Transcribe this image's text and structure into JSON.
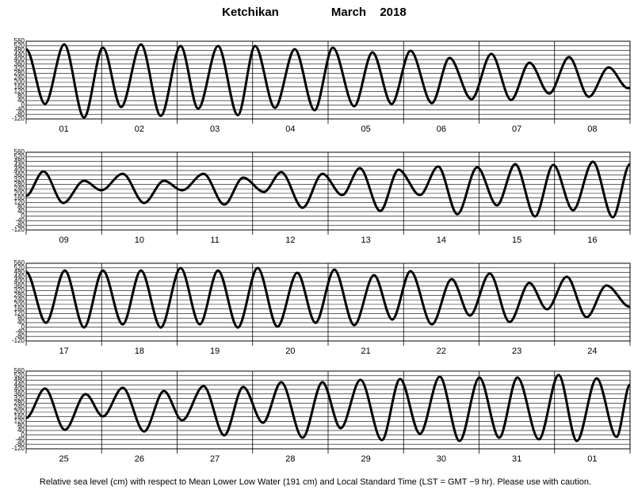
{
  "header": {
    "station": "Ketchikan",
    "month": "March",
    "year": "2018"
  },
  "caption": "Relative sea level (cm) with respect to Mean Lower Low Water (191 cm) and Local Standard Time (LST = GMT −9 hr). Please use with caution.",
  "chart_data": [
    {
      "type": "line",
      "categories": [
        "01",
        "02",
        "03",
        "04",
        "05",
        "06",
        "07",
        "08"
      ],
      "x": [
        0,
        6.0,
        12.1,
        18.4,
        24.4,
        30.2,
        36.5,
        42.8,
        49.1,
        54.7,
        61.0,
        67.3,
        72.8,
        79.1,
        85.4,
        91.7,
        97.5,
        104.3,
        110.1,
        116.2,
        122.2,
        129.0,
        134.6,
        141.6,
        147.9,
        154.2,
        160.0,
        166.3,
        172.6,
        178.9,
        185.2,
        191.3,
        192
      ],
      "series": [
        {
          "color": "#000000",
          "values": [
            490,
            11,
            532,
            -107,
            504,
            -16,
            532,
            -93,
            518,
            -30,
            518,
            -86,
            518,
            -23,
            491,
            -44,
            504,
            -9,
            463,
            11,
            477,
            18,
            414,
            53,
            449,
            46,
            373,
            102,
            421,
            74,
            331,
            150,
            150
          ]
        }
      ],
      "xlim": [
        0,
        192
      ],
      "xticks": [
        0,
        24,
        48,
        72,
        96,
        120,
        144,
        168,
        192
      ],
      "ylim": [
        -120,
        560
      ],
      "yticks": [
        -120,
        -80,
        -40,
        0,
        40,
        80,
        120,
        160,
        200,
        240,
        280,
        320,
        360,
        400,
        440,
        480,
        520,
        560
      ]
    },
    {
      "type": "line",
      "categories": [
        "09",
        "10",
        "11",
        "12",
        "13",
        "14",
        "15",
        "16"
      ],
      "x": [
        0,
        5.5,
        11.8,
        18.4,
        23.9,
        30.7,
        37.5,
        43.8,
        49.6,
        56.4,
        63.0,
        69.0,
        75.6,
        81.1,
        87.9,
        94.2,
        100.5,
        106.1,
        112.6,
        118.4,
        125.2,
        131.0,
        137.1,
        143.4,
        149.7,
        155.5,
        161.8,
        167.6,
        173.9,
        180.2,
        186.5,
        192
      ],
      "series": [
        {
          "color": "#000000",
          "values": [
            178,
            393,
            116,
            310,
            227,
            372,
            116,
            310,
            227,
            372,
            102,
            338,
            213,
            386,
            74,
            372,
            185,
            421,
            46,
            407,
            185,
            435,
            18,
            428,
            95,
            456,
            -2,
            449,
            53,
            477,
            -9,
            456
          ]
        }
      ],
      "xlim": [
        0,
        192
      ],
      "xticks": [
        0,
        24,
        48,
        72,
        96,
        120,
        144,
        168,
        192
      ],
      "ylim": [
        -120,
        560
      ],
      "yticks": [
        -120,
        -80,
        -40,
        0,
        40,
        80,
        120,
        160,
        200,
        240,
        280,
        320,
        360,
        400,
        440,
        480,
        520,
        560
      ]
    },
    {
      "type": "line",
      "categories": [
        "17",
        "18",
        "19",
        "20",
        "21",
        "22",
        "23",
        "24"
      ],
      "x": [
        0,
        6.3,
        12.3,
        18.4,
        24.4,
        30.7,
        36.5,
        42.8,
        49.1,
        55.2,
        61.0,
        67.3,
        73.6,
        79.9,
        86.2,
        92.0,
        98.0,
        104.3,
        110.6,
        116.4,
        122.2,
        129.0,
        135.3,
        141.1,
        147.4,
        153.7,
        160.0,
        165.6,
        171.9,
        178.2,
        184.5,
        192
      ],
      "series": [
        {
          "color": "#000000",
          "values": [
            484,
            39,
            497,
            -2,
            497,
            25,
            497,
            -2,
            518,
            25,
            497,
            -2,
            518,
            5,
            477,
            39,
            504,
            18,
            456,
            67,
            491,
            25,
            421,
            102,
            470,
            46,
            387,
            157,
            442,
            88,
            366,
            178
          ]
        }
      ],
      "xlim": [
        0,
        192
      ],
      "xticks": [
        0,
        24,
        48,
        72,
        96,
        120,
        144,
        168,
        192
      ],
      "ylim": [
        -120,
        560
      ],
      "yticks": [
        -120,
        -80,
        -40,
        0,
        40,
        80,
        120,
        160,
        200,
        240,
        280,
        320,
        360,
        400,
        440,
        480,
        520,
        560
      ]
    },
    {
      "type": "line",
      "categories": [
        "25",
        "26",
        "27",
        "28",
        "29",
        "30",
        "31",
        "01"
      ],
      "x": [
        0,
        6.0,
        12.3,
        18.9,
        24.4,
        30.7,
        37.5,
        43.8,
        49.6,
        56.4,
        63.0,
        69.0,
        75.3,
        81.1,
        87.9,
        94.2,
        100.0,
        106.3,
        113.1,
        118.9,
        125.2,
        131.5,
        137.8,
        144.1,
        150.4,
        156.2,
        163.0,
        169.3,
        175.1,
        181.4,
        187.7,
        192
      ],
      "series": [
        {
          "color": "#000000",
          "values": [
            150,
            407,
            46,
            359,
            164,
            414,
            32,
            386,
            129,
            428,
            -2,
            421,
            108,
            463,
            -23,
            463,
            60,
            484,
            -44,
            491,
            11,
            511,
            -51,
            504,
            -23,
            504,
            -37,
            525,
            -51,
            497,
            -16,
            442
          ]
        }
      ],
      "xlim": [
        0,
        192
      ],
      "xticks": [
        0,
        24,
        48,
        72,
        96,
        120,
        144,
        168,
        192
      ],
      "ylim": [
        -120,
        560
      ],
      "yticks": [
        -120,
        -80,
        -40,
        0,
        40,
        80,
        120,
        160,
        200,
        240,
        280,
        320,
        360,
        400,
        440,
        480,
        520,
        560
      ]
    }
  ]
}
